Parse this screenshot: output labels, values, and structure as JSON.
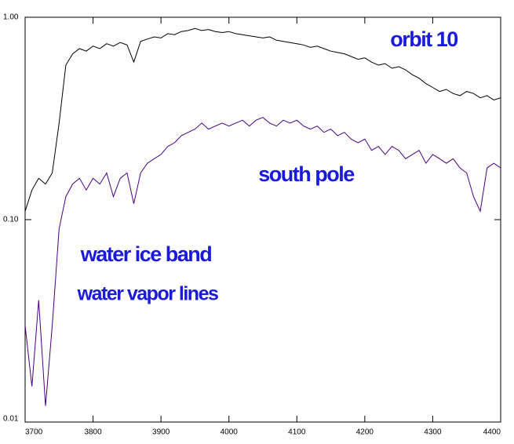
{
  "chart_data": {
    "type": "line",
    "annotations": [
      "orbit 10",
      "south pole",
      "water ice band",
      "water vapor lines"
    ],
    "x": [
      3700,
      3710,
      3720,
      3730,
      3740,
      3750,
      3760,
      3770,
      3780,
      3790,
      3800,
      3810,
      3820,
      3830,
      3840,
      3850,
      3860,
      3870,
      3880,
      3890,
      3900,
      3910,
      3920,
      3930,
      3940,
      3950,
      3960,
      3970,
      3980,
      3990,
      4000,
      4010,
      4020,
      4030,
      4040,
      4050,
      4060,
      4070,
      4080,
      4090,
      4100,
      4110,
      4120,
      4130,
      4140,
      4150,
      4160,
      4170,
      4180,
      4190,
      4200,
      4210,
      4220,
      4230,
      4240,
      4250,
      4260,
      4270,
      4280,
      4290,
      4300,
      4310,
      4320,
      4330,
      4340,
      4350,
      4360,
      4370,
      4380,
      4390,
      4400
    ],
    "series": [
      {
        "color": "#000000",
        "values": [
          0.11,
          0.14,
          0.16,
          0.15,
          0.17,
          0.3,
          0.58,
          0.66,
          0.7,
          0.68,
          0.72,
          0.7,
          0.74,
          0.72,
          0.75,
          0.73,
          0.6,
          0.76,
          0.78,
          0.8,
          0.79,
          0.83,
          0.82,
          0.85,
          0.86,
          0.88,
          0.86,
          0.87,
          0.85,
          0.84,
          0.85,
          0.83,
          0.82,
          0.81,
          0.8,
          0.79,
          0.8,
          0.77,
          0.76,
          0.75,
          0.74,
          0.73,
          0.71,
          0.72,
          0.7,
          0.68,
          0.67,
          0.66,
          0.64,
          0.62,
          0.63,
          0.6,
          0.58,
          0.59,
          0.56,
          0.57,
          0.55,
          0.52,
          0.5,
          0.47,
          0.45,
          0.43,
          0.44,
          0.42,
          0.41,
          0.43,
          0.42,
          0.4,
          0.41,
          0.39,
          0.4
        ]
      },
      {
        "color": "#4b0082",
        "values": [
          0.03,
          0.015,
          0.04,
          0.012,
          0.03,
          0.09,
          0.13,
          0.15,
          0.16,
          0.14,
          0.16,
          0.15,
          0.17,
          0.13,
          0.16,
          0.17,
          0.12,
          0.17,
          0.19,
          0.2,
          0.21,
          0.23,
          0.24,
          0.26,
          0.27,
          0.28,
          0.3,
          0.28,
          0.29,
          0.3,
          0.29,
          0.3,
          0.31,
          0.29,
          0.31,
          0.32,
          0.3,
          0.29,
          0.31,
          0.3,
          0.31,
          0.29,
          0.28,
          0.29,
          0.27,
          0.28,
          0.26,
          0.27,
          0.25,
          0.24,
          0.25,
          0.22,
          0.23,
          0.21,
          0.23,
          0.22,
          0.2,
          0.21,
          0.22,
          0.19,
          0.21,
          0.2,
          0.19,
          0.2,
          0.18,
          0.17,
          0.13,
          0.11,
          0.18,
          0.19,
          0.18
        ]
      }
    ],
    "xlim": [
      3700,
      4400
    ],
    "xticks": [
      3700,
      3800,
      3900,
      4000,
      4100,
      4200,
      4300,
      4400
    ],
    "ylim": [
      0.01,
      1
    ],
    "log_y": true,
    "yticks": [
      {
        "value": 0.01,
        "label": "0.01"
      },
      {
        "value": 0.1,
        "label": "0.10"
      },
      {
        "value": 1,
        "label": "1.00"
      }
    ],
    "annotation_color": "#1a1adc"
  }
}
